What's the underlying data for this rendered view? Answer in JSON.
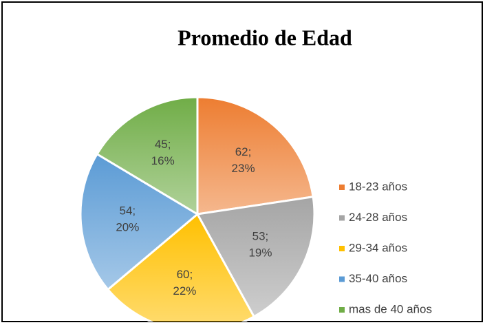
{
  "chart_data": {
    "type": "pie",
    "title": "Promedio de Edad",
    "categories": [
      "18-23 años",
      "24-28 años",
      "29-34 años",
      "35-40 años",
      "mas de 40 años"
    ],
    "values": [
      62,
      53,
      60,
      54,
      45
    ],
    "value_labels": [
      [
        "62;",
        "23%"
      ],
      [
        "53;",
        "19%"
      ],
      [
        "60;",
        "22%"
      ],
      [
        "54;",
        "20%"
      ],
      [
        "45;",
        "16%"
      ]
    ],
    "colors": [
      "#ED7D31",
      "#A5A5A5",
      "#FFC000",
      "#5B9BD5",
      "#70AD47"
    ],
    "legend": "right"
  }
}
